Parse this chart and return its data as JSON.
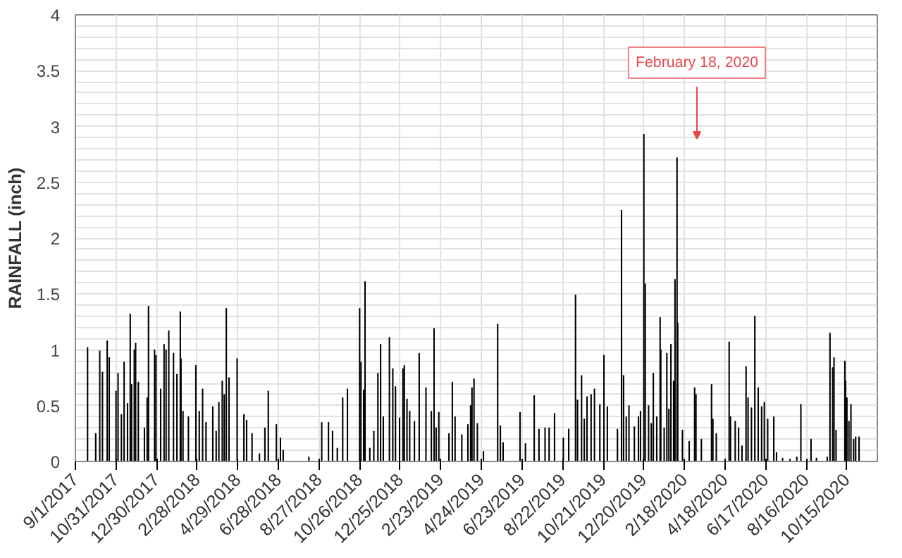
{
  "chart_data": {
    "type": "bar",
    "ylabel": "RAINFALL (inch)",
    "x": [
      "2017-09-19",
      "2017-10-01",
      "2017-10-07",
      "2017-10-11",
      "2017-10-18",
      "2017-10-21",
      "2017-10-31",
      "2017-11-03",
      "2017-11-08",
      "2017-11-12",
      "2017-11-17",
      "2017-11-21",
      "2017-11-23",
      "2017-11-27",
      "2017-11-29",
      "2017-12-03",
      "2017-12-12",
      "2017-12-16",
      "2017-12-18",
      "2017-12-27",
      "2017-12-29",
      "2018-01-05",
      "2018-01-10",
      "2018-01-13",
      "2018-01-17",
      "2018-01-24",
      "2018-01-29",
      "2018-02-03",
      "2018-02-04",
      "2018-02-07",
      "2018-02-15",
      "2018-02-26",
      "2018-03-03",
      "2018-03-08",
      "2018-03-13",
      "2018-03-23",
      "2018-03-28",
      "2018-04-01",
      "2018-04-06",
      "2018-04-09",
      "2018-04-12",
      "2018-04-16",
      "2018-04-28",
      "2018-05-08",
      "2018-05-12",
      "2018-05-20",
      "2018-05-31",
      "2018-06-08",
      "2018-06-13",
      "2018-06-25",
      "2018-07-01",
      "2018-07-05",
      "2018-08-12",
      "2018-08-31",
      "2018-09-10",
      "2018-09-16",
      "2018-09-23",
      "2018-10-01",
      "2018-10-08",
      "2018-10-26",
      "2018-10-28",
      "2018-11-01",
      "2018-11-03",
      "2018-11-10",
      "2018-11-16",
      "2018-11-22",
      "2018-11-26",
      "2018-11-30",
      "2018-12-09",
      "2018-12-14",
      "2018-12-18",
      "2018-12-24",
      "2018-12-29",
      "2018-12-31",
      "2019-01-04",
      "2019-01-08",
      "2019-01-15",
      "2019-01-22",
      "2019-02-01",
      "2019-02-09",
      "2019-02-13",
      "2019-02-16",
      "2019-02-20",
      "2019-03-07",
      "2019-03-12",
      "2019-03-16",
      "2019-03-26",
      "2019-04-04",
      "2019-04-08",
      "2019-04-10",
      "2019-04-13",
      "2019-04-18",
      "2019-04-27",
      "2019-05-18",
      "2019-05-22",
      "2019-05-26",
      "2019-06-20",
      "2019-06-28",
      "2019-07-11",
      "2019-07-18",
      "2019-07-27",
      "2019-08-02",
      "2019-08-10",
      "2019-08-23",
      "2019-08-31",
      "2019-09-10",
      "2019-09-13",
      "2019-09-19",
      "2019-09-23",
      "2019-09-27",
      "2019-10-03",
      "2019-10-08",
      "2019-10-16",
      "2019-10-22",
      "2019-10-27",
      "2019-11-11",
      "2019-11-17",
      "2019-11-20",
      "2019-11-24",
      "2019-11-28",
      "2019-12-06",
      "2019-12-12",
      "2019-12-15",
      "2019-12-20",
      "2019-12-22",
      "2019-12-27",
      "2019-12-31",
      "2020-01-03",
      "2020-01-08",
      "2020-01-13",
      "2020-01-14",
      "2020-01-19",
      "2020-01-23",
      "2020-01-26",
      "2020-01-29",
      "2020-02-02",
      "2020-02-04",
      "2020-02-07",
      "2020-02-08",
      "2020-02-15",
      "2020-02-25",
      "2020-03-04",
      "2020-03-06",
      "2020-03-14",
      "2020-03-29",
      "2020-03-31",
      "2020-04-05",
      "2020-04-24",
      "2020-04-26",
      "2020-05-03",
      "2020-05-08",
      "2020-05-13",
      "2020-05-19",
      "2020-05-22",
      "2020-05-27",
      "2020-06-01",
      "2020-06-06",
      "2020-06-11",
      "2020-06-15",
      "2020-06-20",
      "2020-06-29",
      "2020-07-03",
      "2020-07-12",
      "2020-07-23",
      "2020-08-02",
      "2020-08-08",
      "2020-08-23",
      "2020-08-31",
      "2020-09-16",
      "2020-09-20",
      "2020-09-24",
      "2020-09-26",
      "2020-09-29",
      "2020-10-12",
      "2020-10-13",
      "2020-10-15",
      "2020-10-18",
      "2020-10-21",
      "2020-10-25",
      "2020-10-28",
      "2020-11-02"
    ],
    "values": [
      1.02,
      0.25,
      0.99,
      0.8,
      1.08,
      0.93,
      0.63,
      0.79,
      0.42,
      0.89,
      0.52,
      1.32,
      0.69,
      1.0,
      1.06,
      0.71,
      0.3,
      0.57,
      1.39,
      1.0,
      0.95,
      0.65,
      1.05,
      1.0,
      1.17,
      0.97,
      0.78,
      1.34,
      0.92,
      0.45,
      0.4,
      0.86,
      0.45,
      0.65,
      0.35,
      0.49,
      0.27,
      0.53,
      0.72,
      0.6,
      1.37,
      0.75,
      0.92,
      0.42,
      0.37,
      0.25,
      0.07,
      0.3,
      0.63,
      0.33,
      0.21,
      0.1,
      0.04,
      0.35,
      0.35,
      0.27,
      0.12,
      0.57,
      0.65,
      1.37,
      0.89,
      0.64,
      1.61,
      0.12,
      0.27,
      0.79,
      1.05,
      0.4,
      1.11,
      0.83,
      0.67,
      0.39,
      0.83,
      0.86,
      0.56,
      0.45,
      0.36,
      0.97,
      0.66,
      0.45,
      1.19,
      0.3,
      0.44,
      0.25,
      0.71,
      0.4,
      0.24,
      0.33,
      0.5,
      0.66,
      0.74,
      0.34,
      0.09,
      1.23,
      0.32,
      0.17,
      0.44,
      0.16,
      0.59,
      0.29,
      0.3,
      0.3,
      0.43,
      0.21,
      0.29,
      1.49,
      0.55,
      0.77,
      0.38,
      0.58,
      0.6,
      0.65,
      0.51,
      0.95,
      0.49,
      0.29,
      2.25,
      0.77,
      0.4,
      0.5,
      0.31,
      0.4,
      0.45,
      2.93,
      1.59,
      0.5,
      0.34,
      0.79,
      0.4,
      1.29,
      1.0,
      0.3,
      0.97,
      0.47,
      1.05,
      0.72,
      1.63,
      2.72,
      1.24,
      0.28,
      0.18,
      0.66,
      0.6,
      0.2,
      0.69,
      0.38,
      0.25,
      1.07,
      0.4,
      0.36,
      0.3,
      0.14,
      0.85,
      0.57,
      0.48,
      1.3,
      0.66,
      0.49,
      0.53,
      0.38,
      0.4,
      0.08,
      0.03,
      0.02,
      0.04,
      0.51,
      0.2,
      0.03,
      0.04,
      1.15,
      0.84,
      0.93,
      0.28,
      0.9,
      0.72,
      0.57,
      0.36,
      0.51,
      0.2,
      0.22,
      0.22
    ],
    "color": "#000000",
    "xlim": [
      "2017-09-01",
      "2020-11-29"
    ],
    "xticks": [
      {
        "value": "2017-09-01",
        "label": "9/1/2017"
      },
      {
        "value": "2017-10-31",
        "label": "10/31/2017"
      },
      {
        "value": "2017-12-30",
        "label": "12/30/2017"
      },
      {
        "value": "2018-02-28",
        "label": "2/28/2018"
      },
      {
        "value": "2018-04-29",
        "label": "4/29/2018"
      },
      {
        "value": "2018-06-28",
        "label": "6/28/2018"
      },
      {
        "value": "2018-08-27",
        "label": "8/27/2018"
      },
      {
        "value": "2018-10-26",
        "label": "10/26/2018"
      },
      {
        "value": "2018-12-25",
        "label": "12/25/2018"
      },
      {
        "value": "2019-02-23",
        "label": "2/23/2019"
      },
      {
        "value": "2019-04-24",
        "label": "4/24/2019"
      },
      {
        "value": "2019-06-23",
        "label": "6/23/2019"
      },
      {
        "value": "2019-08-22",
        "label": "8/22/2019"
      },
      {
        "value": "2019-10-21",
        "label": "10/21/2019"
      },
      {
        "value": "2019-12-20",
        "label": "12/20/2019"
      },
      {
        "value": "2020-02-18",
        "label": "2/18/2020"
      },
      {
        "value": "2020-04-18",
        "label": "4/18/2020"
      },
      {
        "value": "2020-06-17",
        "label": "6/17/2020"
      },
      {
        "value": "2020-08-16",
        "label": "8/16/2020"
      },
      {
        "value": "2020-10-15",
        "label": "10/15/2020"
      }
    ],
    "ylim": [
      0,
      4
    ],
    "yticks": [
      0,
      {
        "value": 0.1,
        "label": null
      },
      {
        "value": 0.2,
        "label": null
      },
      {
        "value": 0.3,
        "label": null
      },
      {
        "value": 0.4,
        "label": null
      },
      0.5,
      {
        "value": 0.6,
        "label": null
      },
      {
        "value": 0.7,
        "label": null
      },
      {
        "value": 0.8,
        "label": null
      },
      {
        "value": 0.9,
        "label": null
      },
      1,
      {
        "value": 1.1,
        "label": null
      },
      {
        "value": 1.2,
        "label": null
      },
      {
        "value": 1.3,
        "label": null
      },
      {
        "value": 1.4,
        "label": null
      },
      1.5,
      {
        "value": 1.6,
        "label": null
      },
      {
        "value": 1.7,
        "label": null
      },
      {
        "value": 1.8,
        "label": null
      },
      {
        "value": 1.9,
        "label": null
      },
      2,
      {
        "value": 2.1,
        "label": null
      },
      {
        "value": 2.2,
        "label": null
      },
      {
        "value": 2.3,
        "label": null
      },
      {
        "value": 2.4,
        "label": null
      },
      2.5,
      {
        "value": 2.6,
        "label": null
      },
      {
        "value": 2.7,
        "label": null
      },
      {
        "value": 2.8,
        "label": null
      },
      {
        "value": 2.9,
        "label": null
      },
      3,
      {
        "value": 3.1,
        "label": null
      },
      {
        "value": 3.2,
        "label": null
      },
      {
        "value": 3.3,
        "label": null
      },
      {
        "value": 3.4,
        "label": null
      },
      3.5,
      {
        "value": 3.6,
        "label": null
      },
      {
        "value": 3.7,
        "label": null
      },
      {
        "value": 3.8,
        "label": null
      },
      {
        "value": 3.9,
        "label": null
      },
      4
    ],
    "grid": true,
    "annotations": [
      "February 18, 2020"
    ]
  }
}
